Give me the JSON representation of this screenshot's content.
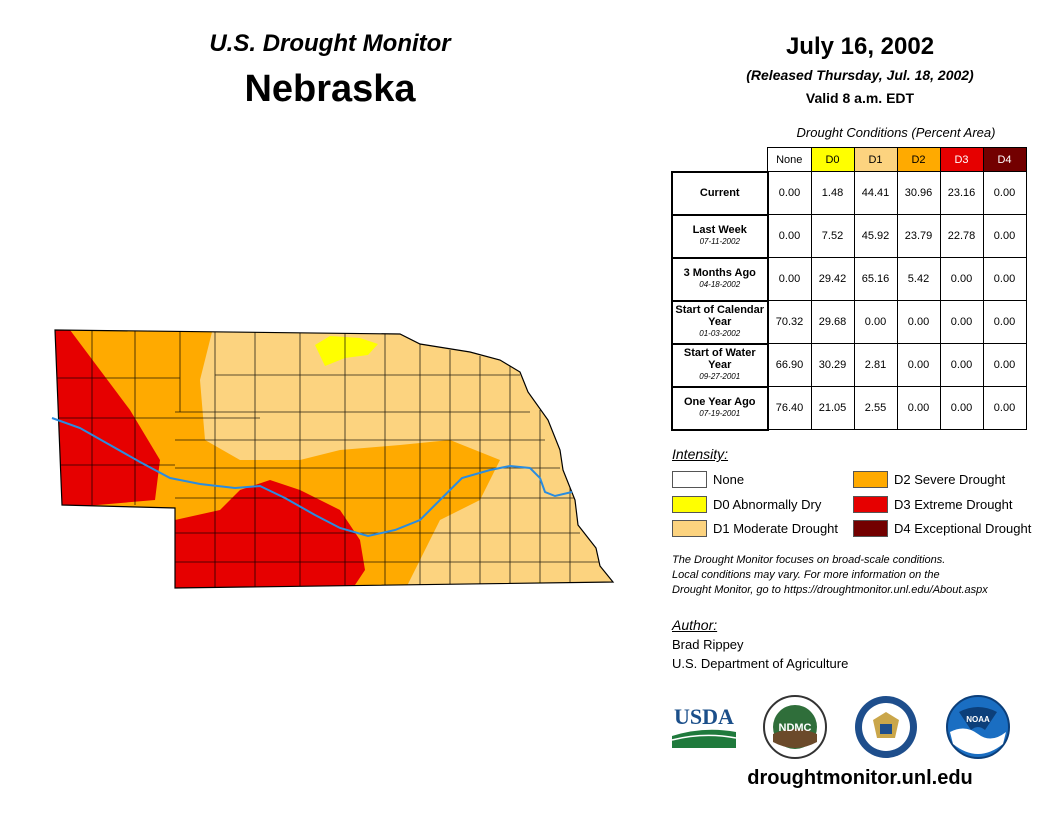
{
  "header": {
    "title": "U.S. Drought Monitor",
    "state": "Nebraska",
    "date": "July 16, 2002",
    "released": "(Released Thursday, Jul. 18, 2002)",
    "valid": "Valid 8 a.m. EDT"
  },
  "table": {
    "caption": "Drought Conditions (Percent Area)",
    "categories": [
      "None",
      "D0",
      "D1",
      "D2",
      "D3",
      "D4"
    ],
    "rows": [
      {
        "label": "Current",
        "date": "",
        "values": [
          "0.00",
          "1.48",
          "44.41",
          "30.96",
          "23.16",
          "0.00"
        ]
      },
      {
        "label": "Last Week",
        "date": "07-11-2002",
        "values": [
          "0.00",
          "7.52",
          "45.92",
          "23.79",
          "22.78",
          "0.00"
        ]
      },
      {
        "label": "3 Months Ago",
        "date": "04-18-2002",
        "values": [
          "0.00",
          "29.42",
          "65.16",
          "5.42",
          "0.00",
          "0.00"
        ]
      },
      {
        "label": "Start of Calendar Year",
        "date": "01-03-2002",
        "values": [
          "70.32",
          "29.68",
          "0.00",
          "0.00",
          "0.00",
          "0.00"
        ]
      },
      {
        "label": "Start of Water Year",
        "date": "09-27-2001",
        "values": [
          "66.90",
          "30.29",
          "2.81",
          "0.00",
          "0.00",
          "0.00"
        ]
      },
      {
        "label": "One Year Ago",
        "date": "07-19-2001",
        "values": [
          "76.40",
          "21.05",
          "2.55",
          "0.00",
          "0.00",
          "0.00"
        ]
      }
    ]
  },
  "legend": {
    "title": "Intensity:",
    "items": [
      {
        "label": "None",
        "color": "#ffffff"
      },
      {
        "label": "D0 Abnormally Dry",
        "color": "#ffff00"
      },
      {
        "label": "D1 Moderate Drought",
        "color": "#fcd37f"
      },
      {
        "label": "D2 Severe Drought",
        "color": "#ffaa00"
      },
      {
        "label": "D3 Extreme Drought",
        "color": "#e60000"
      },
      {
        "label": "D4 Exceptional Drought",
        "color": "#730000"
      }
    ]
  },
  "note": {
    "line1": "The Drought Monitor focuses on broad-scale conditions.",
    "line2": "Local conditions may vary. For more information on the",
    "line3": "Drought Monitor, go to https://droughtmonitor.unl.edu/About.aspx"
  },
  "author": {
    "title": "Author:",
    "name": "Brad Rippey",
    "org": "U.S. Department of Agriculture"
  },
  "logos": {
    "usda": "USDA",
    "ndmc": "NDMC",
    "noaa": "NOAA"
  },
  "website": "droughtmonitor.unl.edu"
}
